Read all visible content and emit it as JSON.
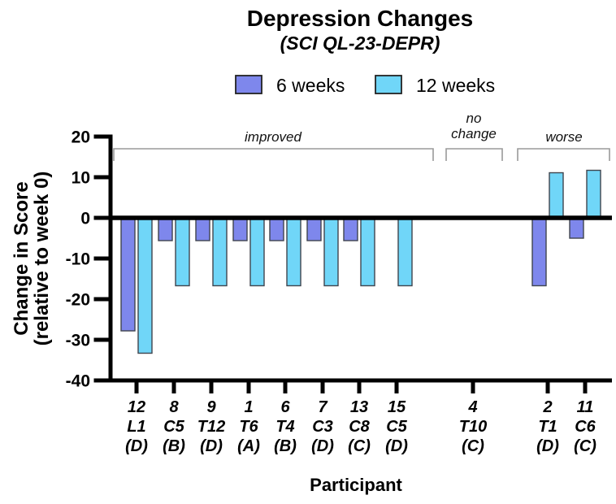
{
  "title": "Depression Changes",
  "subtitle": "(SCI QL-23-DEPR)",
  "legend": [
    {
      "label": "6 weeks",
      "color": "#7E87EC"
    },
    {
      "label": "12 weeks",
      "color": "#70D6F8"
    }
  ],
  "y_axis": {
    "label_line1": "Change in Score",
    "label_line2": "(relative to week 0)",
    "ticks": [
      20,
      10,
      0,
      -10,
      -20,
      -30,
      -40
    ]
  },
  "x_axis": {
    "label": "Participant"
  },
  "annotations": {
    "improved": "improved",
    "no_change_line1": "no",
    "no_change_line2": "change",
    "worse": "worse"
  },
  "chart_data": {
    "type": "bar",
    "title": "Depression Changes",
    "subtitle": "(SCI QL-23-DEPR)",
    "xlabel": "Participant",
    "ylabel": "Change in Score (relative to week 0)",
    "ylim": [
      -40,
      20
    ],
    "yticks": [
      20,
      10,
      0,
      -10,
      -20,
      -30,
      -40
    ],
    "grid": false,
    "legend_position": "top",
    "categories": [
      {
        "id": "12",
        "code": "L1",
        "group": "(D)"
      },
      {
        "id": "8",
        "code": "C5",
        "group": "(B)"
      },
      {
        "id": "9",
        "code": "T12",
        "group": "(D)"
      },
      {
        "id": "1",
        "code": "T6",
        "group": "(A)"
      },
      {
        "id": "6",
        "code": "T4",
        "group": "(B)"
      },
      {
        "id": "7",
        "code": "C3",
        "group": "(D)"
      },
      {
        "id": "13",
        "code": "C8",
        "group": "(C)"
      },
      {
        "id": "15",
        "code": "C5",
        "group": "(D)"
      },
      {
        "id": "4",
        "code": "T10",
        "group": "(C)"
      },
      {
        "id": "2",
        "code": "T1",
        "group": "(D)"
      },
      {
        "id": "11",
        "code": "C6",
        "group": "(C)"
      }
    ],
    "series": [
      {
        "name": "6 weeks",
        "color": "#7E87EC",
        "values": [
          -27.8,
          -5.6,
          -5.6,
          -5.6,
          -5.6,
          -5.6,
          -5.6,
          0,
          0,
          -16.7,
          -5.0
        ]
      },
      {
        "name": "12 weeks",
        "color": "#70D6F8",
        "values": [
          -33.3,
          -16.7,
          -16.7,
          -16.7,
          -16.7,
          -16.7,
          -16.7,
          -16.7,
          0,
          11.1,
          11.7
        ]
      }
    ],
    "outcome_groups": [
      {
        "label": "improved",
        "participants": [
          "12",
          "8",
          "9",
          "1",
          "6",
          "7",
          "13",
          "15"
        ]
      },
      {
        "label": "no change",
        "participants": [
          "4"
        ]
      },
      {
        "label": "worse",
        "participants": [
          "2",
          "11"
        ]
      }
    ]
  }
}
